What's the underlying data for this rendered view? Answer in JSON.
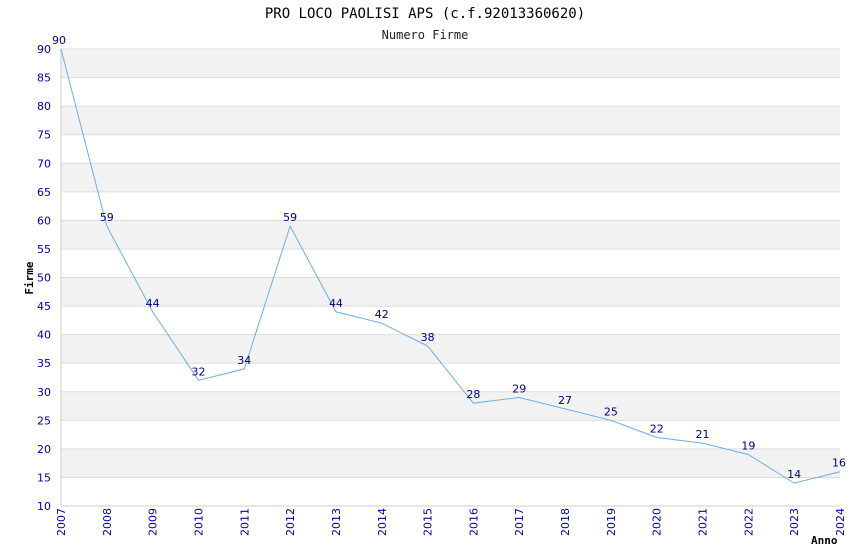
{
  "chart_data": {
    "type": "line",
    "title": "PRO LOCO PAOLISI APS (c.f.92013360620)",
    "subtitle": "Numero Firme",
    "xlabel": "Anno",
    "ylabel": "Firme",
    "ylim": [
      10,
      90
    ],
    "ytick_step": 5,
    "grid": true,
    "x": [
      "2007",
      "2008",
      "2009",
      "2010",
      "2011",
      "2012",
      "2013",
      "2014",
      "2015",
      "2016",
      "2017",
      "2018",
      "2019",
      "2020",
      "2021",
      "2022",
      "2023",
      "2024"
    ],
    "series": [
      {
        "values": [
          90,
          59,
          44,
          32,
          34,
          59,
          44,
          42,
          38,
          28,
          29,
          27,
          25,
          22,
          21,
          19,
          14,
          16
        ],
        "color": "#6aaee8"
      }
    ],
    "colors": {
      "band": "#f2f2f2",
      "gridline": "#dddddd",
      "axis": "#cccccc",
      "tick_text": "#0000aa",
      "data_label": "#000080"
    }
  }
}
